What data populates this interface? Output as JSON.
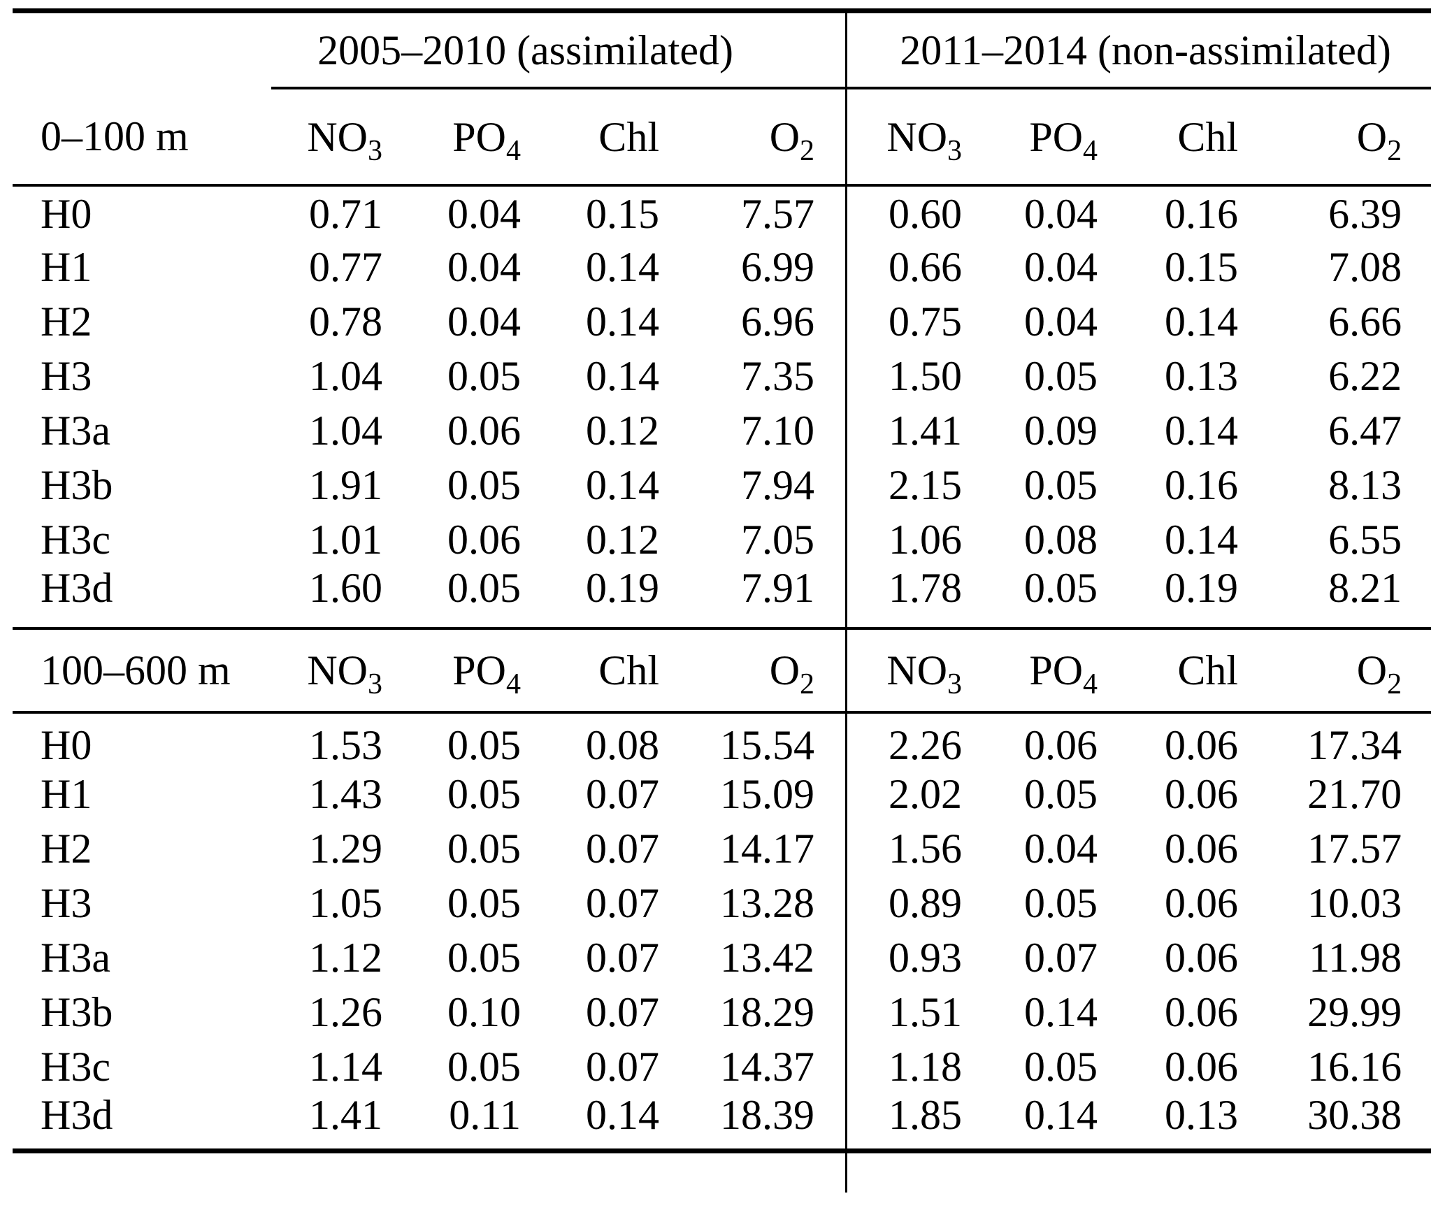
{
  "table": {
    "group_headers": [
      {
        "label": "2005–2010 (assimilated)"
      },
      {
        "label": "2011–2014 (non-assimilated)"
      }
    ],
    "column_headers": [
      {
        "base": "NO",
        "sub": "3"
      },
      {
        "base": "PO",
        "sub": "4"
      },
      {
        "base": "Chl",
        "sub": ""
      },
      {
        "base": "O",
        "sub": "2"
      }
    ],
    "sections": [
      {
        "depth_label": "0–100 m",
        "rows": [
          {
            "run": "H0",
            "assimilated": [
              "0.71",
              "0.04",
              "0.15",
              "7.57"
            ],
            "non_assimilated": [
              "0.60",
              "0.04",
              "0.16",
              "6.39"
            ]
          },
          {
            "run": "H1",
            "assimilated": [
              "0.77",
              "0.04",
              "0.14",
              "6.99"
            ],
            "non_assimilated": [
              "0.66",
              "0.04",
              "0.15",
              "7.08"
            ]
          },
          {
            "run": "H2",
            "assimilated": [
              "0.78",
              "0.04",
              "0.14",
              "6.96"
            ],
            "non_assimilated": [
              "0.75",
              "0.04",
              "0.14",
              "6.66"
            ]
          },
          {
            "run": "H3",
            "assimilated": [
              "1.04",
              "0.05",
              "0.14",
              "7.35"
            ],
            "non_assimilated": [
              "1.50",
              "0.05",
              "0.13",
              "6.22"
            ]
          },
          {
            "run": "H3a",
            "assimilated": [
              "1.04",
              "0.06",
              "0.12",
              "7.10"
            ],
            "non_assimilated": [
              "1.41",
              "0.09",
              "0.14",
              "6.47"
            ]
          },
          {
            "run": "H3b",
            "assimilated": [
              "1.91",
              "0.05",
              "0.14",
              "7.94"
            ],
            "non_assimilated": [
              "2.15",
              "0.05",
              "0.16",
              "8.13"
            ]
          },
          {
            "run": "H3c",
            "assimilated": [
              "1.01",
              "0.06",
              "0.12",
              "7.05"
            ],
            "non_assimilated": [
              "1.06",
              "0.08",
              "0.14",
              "6.55"
            ]
          },
          {
            "run": "H3d",
            "assimilated": [
              "1.60",
              "0.05",
              "0.19",
              "7.91"
            ],
            "non_assimilated": [
              "1.78",
              "0.05",
              "0.19",
              "8.21"
            ]
          }
        ]
      },
      {
        "depth_label": "100–600 m",
        "rows": [
          {
            "run": "H0",
            "assimilated": [
              "1.53",
              "0.05",
              "0.08",
              "15.54"
            ],
            "non_assimilated": [
              "2.26",
              "0.06",
              "0.06",
              "17.34"
            ]
          },
          {
            "run": "H1",
            "assimilated": [
              "1.43",
              "0.05",
              "0.07",
              "15.09"
            ],
            "non_assimilated": [
              "2.02",
              "0.05",
              "0.06",
              "21.70"
            ]
          },
          {
            "run": "H2",
            "assimilated": [
              "1.29",
              "0.05",
              "0.07",
              "14.17"
            ],
            "non_assimilated": [
              "1.56",
              "0.04",
              "0.06",
              "17.57"
            ]
          },
          {
            "run": "H3",
            "assimilated": [
              "1.05",
              "0.05",
              "0.07",
              "13.28"
            ],
            "non_assimilated": [
              "0.89",
              "0.05",
              "0.06",
              "10.03"
            ]
          },
          {
            "run": "H3a",
            "assimilated": [
              "1.12",
              "0.05",
              "0.07",
              "13.42"
            ],
            "non_assimilated": [
              "0.93",
              "0.07",
              "0.06",
              "11.98"
            ]
          },
          {
            "run": "H3b",
            "assimilated": [
              "1.26",
              "0.10",
              "0.07",
              "18.29"
            ],
            "non_assimilated": [
              "1.51",
              "0.14",
              "0.06",
              "29.99"
            ]
          },
          {
            "run": "H3c",
            "assimilated": [
              "1.14",
              "0.05",
              "0.07",
              "14.37"
            ],
            "non_assimilated": [
              "1.18",
              "0.05",
              "0.06",
              "16.16"
            ]
          },
          {
            "run": "H3d",
            "assimilated": [
              "1.41",
              "0.11",
              "0.14",
              "18.39"
            ],
            "non_assimilated": [
              "1.85",
              "0.14",
              "0.13",
              "30.38"
            ]
          }
        ]
      }
    ],
    "colors": {
      "ink": "#000000",
      "background": "#ffffff"
    }
  }
}
